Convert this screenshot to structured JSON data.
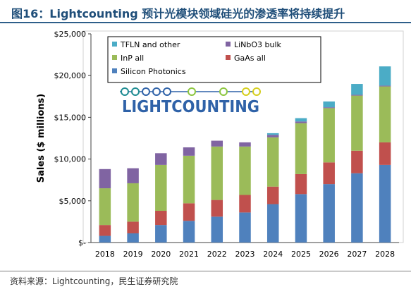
{
  "figure_title": "图16：Lightcounting 预计光模块领域硅光的渗透率将持续提升",
  "source": "资料来源：Lightcounting，民生证券研究院",
  "logo_text": "LIGHTCOUNTING",
  "colors": {
    "title": "#1f4e79",
    "si": "#4f81bd",
    "gaas": "#c0504d",
    "inp": "#9bbb59",
    "linbo3": "#8064a2",
    "tfln": "#4bacc6",
    "logo_blue": "#2f62a8",
    "logo_green": "#8cc63f",
    "logo_teal": "#1f8c92",
    "logo_yellow": "#d6cf1e"
  },
  "chart_data": {
    "type": "bar",
    "stacked": true,
    "categories": [
      "2018",
      "2019",
      "2020",
      "2021",
      "2022",
      "2023",
      "2024",
      "2025",
      "2026",
      "2027",
      "2028"
    ],
    "ylabel": "Sales ($ millions)",
    "ylim": [
      0,
      25000
    ],
    "yticks": [
      0,
      5000,
      10000,
      15000,
      20000,
      25000
    ],
    "ytick_labels": [
      "$-",
      "$5,000",
      "$10,000",
      "$15,000",
      "$20,000",
      "$25,000"
    ],
    "grid": false,
    "legend_position": "top-left inside",
    "series": [
      {
        "name": "Silicon Photonics",
        "color": "#4f81bd",
        "values": [
          800,
          1100,
          2100,
          2600,
          3100,
          3600,
          4600,
          5800,
          7000,
          8300,
          9300
        ]
      },
      {
        "name": "GaAs all",
        "color": "#c0504d",
        "values": [
          1300,
          1400,
          1700,
          2100,
          2000,
          2100,
          2100,
          2400,
          2600,
          2700,
          2700
        ]
      },
      {
        "name": "InP all",
        "color": "#9bbb59",
        "values": [
          4400,
          4600,
          5500,
          5700,
          6400,
          5800,
          5900,
          6100,
          6500,
          6600,
          6700
        ]
      },
      {
        "name": "LiNbO3 bulk",
        "color": "#8064a2",
        "values": [
          2300,
          1800,
          1400,
          1000,
          700,
          500,
          300,
          200,
          100,
          100,
          100
        ]
      },
      {
        "name": "TFLN and other",
        "color": "#4bacc6",
        "values": [
          0,
          0,
          0,
          0,
          0,
          0,
          200,
          400,
          700,
          1300,
          2300
        ]
      }
    ]
  }
}
